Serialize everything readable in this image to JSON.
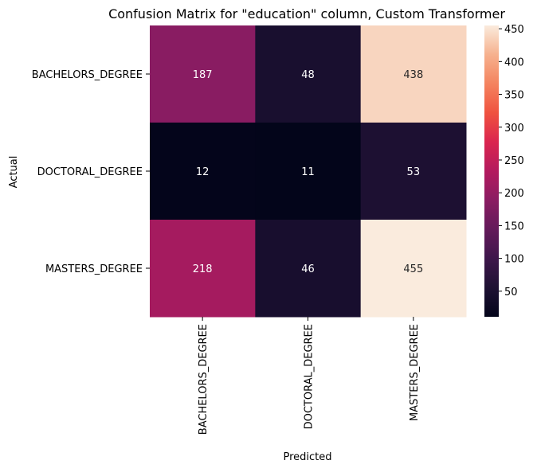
{
  "chart_data": {
    "type": "heatmap",
    "title": "Confusion Matrix for \"education\" column, Custom Transformer",
    "xlabel": "Predicted",
    "ylabel": "Actual",
    "x_categories": [
      "BACHELORS_DEGREE",
      "DOCTORAL_DEGREE",
      "MASTERS_DEGREE"
    ],
    "y_categories": [
      "BACHELORS_DEGREE",
      "DOCTORAL_DEGREE",
      "MASTERS_DEGREE"
    ],
    "values": [
      [
        187,
        48,
        438
      ],
      [
        12,
        11,
        53
      ],
      [
        218,
        46,
        455
      ]
    ],
    "colormap": "rocket",
    "vmin": 11,
    "vmax": 455,
    "colorbar_ticks": [
      50,
      100,
      150,
      200,
      250,
      300,
      350,
      400,
      450
    ],
    "annotation_colors": {
      "light": "#ffffff",
      "dark": "#262626"
    }
  }
}
